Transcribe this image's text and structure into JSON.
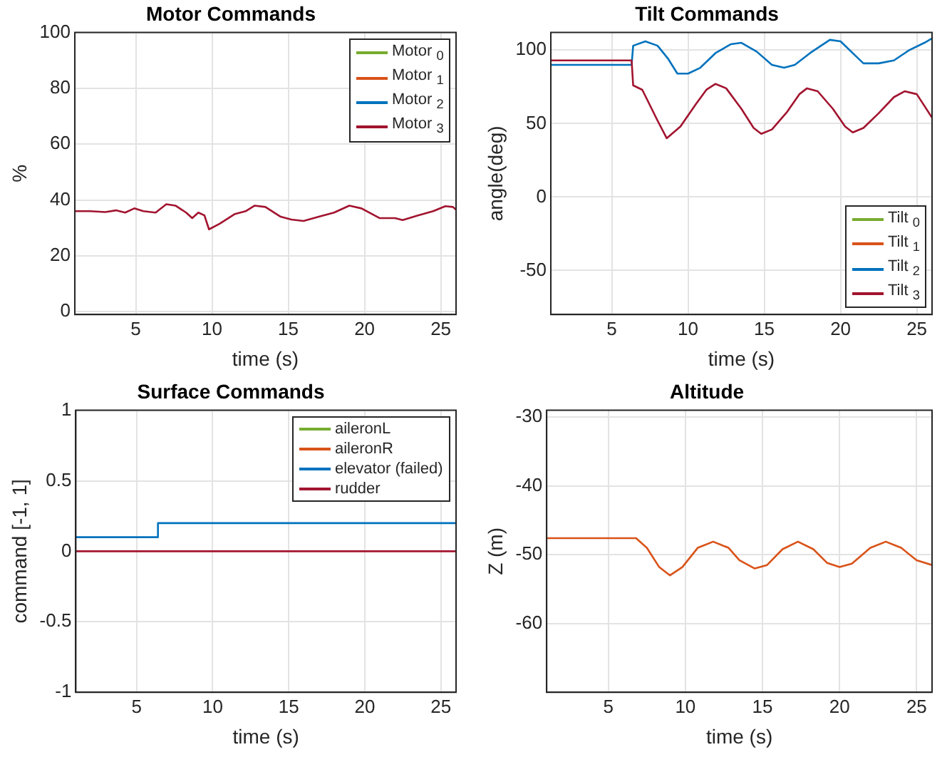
{
  "chart_data": [
    {
      "type": "line",
      "title": "Motor Commands",
      "xlabel": "time (s)",
      "ylabel": "%",
      "xlim": [
        1,
        26
      ],
      "xticks": [
        5,
        10,
        15,
        20,
        25
      ],
      "ylim": [
        -1,
        100
      ],
      "yticks": [
        0,
        20,
        40,
        60,
        80,
        100
      ],
      "grid": true,
      "legend": "top right",
      "series": [
        {
          "name": "Motor $_{0}$",
          "color": "#77ac30"
        },
        {
          "name": "Motor $_{1}$",
          "color": "#d95319"
        },
        {
          "name": "Motor $_{2}$",
          "color": "#0072bd"
        },
        {
          "name": "Motor $_{3}$",
          "color": "#a2142f",
          "x": [
            1,
            2,
            3,
            3.7,
            4.3,
            4.9,
            5.5,
            6.3,
            7,
            7.6,
            8.3,
            8.7,
            9.1,
            9.5,
            9.8,
            10.5,
            11.5,
            12.2,
            12.8,
            13.5,
            14.5,
            15.2,
            16,
            17,
            18,
            19,
            19.8,
            21,
            22,
            22.5,
            23.5,
            24.5,
            25.3,
            25.8,
            26
          ],
          "values": [
            36,
            36,
            35.7,
            36.3,
            35.5,
            37,
            36,
            35.5,
            38.5,
            38,
            35.5,
            33.5,
            35.5,
            34.5,
            29.5,
            31.5,
            35,
            36,
            38,
            37.5,
            34,
            33,
            32.5,
            34,
            35.5,
            38,
            37,
            33.5,
            33.5,
            32.8,
            34.5,
            36,
            37.8,
            37.5,
            36.5
          ]
        }
      ]
    },
    {
      "type": "line",
      "title": "Tilt Commands",
      "xlabel": "time (s)",
      "ylabel": "angle(deg)",
      "xlim": [
        1,
        26
      ],
      "xticks": [
        5,
        10,
        15,
        20,
        25
      ],
      "ylim": [
        -80,
        112
      ],
      "yticks": [
        -50,
        0,
        50,
        100
      ],
      "grid": true,
      "legend": "bottom right",
      "series": [
        {
          "name": "Tilt $_{0}$",
          "color": "#77ac30"
        },
        {
          "name": "Tilt $_{1}$",
          "color": "#d95319"
        },
        {
          "name": "Tilt $_{2}$",
          "color": "#0072bd",
          "x": [
            1,
            6.3,
            6.4,
            7.2,
            8,
            8.7,
            9.3,
            10,
            10.8,
            11.8,
            12.8,
            13.5,
            14.5,
            15.5,
            16.3,
            17,
            18,
            19.3,
            20,
            21,
            21.5,
            22.5,
            23.5,
            24.5,
            25.5,
            26
          ],
          "values": [
            90,
            90,
            103,
            106,
            103,
            94,
            84,
            84,
            88,
            98,
            104,
            105,
            99,
            90,
            88,
            90,
            98,
            107,
            106,
            96,
            91,
            91,
            93,
            100,
            105,
            108
          ]
        },
        {
          "name": "Tilt $_{3}$",
          "color": "#a2142f",
          "x": [
            1,
            6.3,
            6.4,
            7,
            8,
            8.6,
            9.5,
            10.5,
            11.2,
            11.8,
            12.5,
            13.5,
            14.3,
            14.8,
            15.5,
            16.5,
            17.3,
            17.8,
            18.5,
            19.5,
            20.3,
            20.8,
            21.5,
            22.5,
            23.5,
            24.2,
            25,
            26
          ],
          "values": [
            93,
            93,
            76,
            73,
            52,
            40,
            48,
            63,
            73,
            77,
            74,
            60,
            47,
            43,
            46,
            58,
            70,
            74,
            72,
            60,
            48,
            44,
            47,
            57,
            68,
            72,
            70,
            54
          ]
        }
      ]
    },
    {
      "type": "line",
      "title": "Surface Commands",
      "xlabel": "time (s)",
      "ylabel": "command [-1, 1]",
      "xlim": [
        1,
        26
      ],
      "xticks": [
        5,
        10,
        15,
        20,
        25
      ],
      "ylim": [
        -1,
        1
      ],
      "yticks": [
        -1,
        -0.5,
        0,
        0.5,
        1
      ],
      "grid": true,
      "legend": "top right",
      "series": [
        {
          "name": "aileronL",
          "color": "#77ac30"
        },
        {
          "name": "aileronR",
          "color": "#d95319"
        },
        {
          "name": "elevator (failed)",
          "color": "#0072bd",
          "type": "step",
          "x": [
            1,
            6.4,
            26
          ],
          "values": [
            0.1,
            0.2,
            0.2
          ]
        },
        {
          "name": "rudder",
          "color": "#a2142f",
          "x": [
            1,
            26
          ],
          "values": [
            0,
            0
          ]
        }
      ]
    },
    {
      "type": "line",
      "title": "Altitude",
      "xlabel": "time (s)",
      "ylabel": "Z (m)",
      "xlim": [
        1,
        26
      ],
      "xticks": [
        5,
        10,
        15,
        20,
        25
      ],
      "ylim": [
        -70,
        -29
      ],
      "yticks": [
        -60,
        -50,
        -40,
        -30
      ],
      "grid": true,
      "series": [
        {
          "color": "#d95319",
          "x": [
            1,
            6.8,
            7.5,
            8.3,
            9,
            9.8,
            10.8,
            11.8,
            12.8,
            13.5,
            14.5,
            15.3,
            16.3,
            17.3,
            18.3,
            19.2,
            20,
            20.8,
            22,
            23,
            24,
            25,
            26
          ],
          "values": [
            -47.6,
            -47.6,
            -49,
            -51.8,
            -53,
            -51.8,
            -49,
            -48.1,
            -49,
            -50.8,
            -52,
            -51.5,
            -49.2,
            -48.1,
            -49.2,
            -51.2,
            -51.8,
            -51.3,
            -49,
            -48.1,
            -49,
            -50.8,
            -51.5
          ]
        }
      ]
    }
  ]
}
